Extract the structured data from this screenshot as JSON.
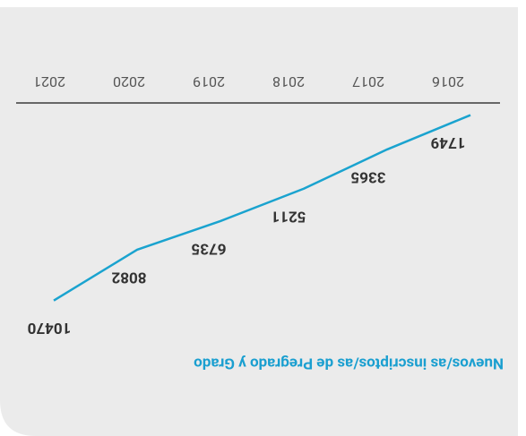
{
  "chart_data": {
    "type": "line",
    "title": "Nuevos/as inscriptos/as de Pregrado y Grado",
    "categories": [
      "2016",
      "2017",
      "2018",
      "2019",
      "2020",
      "2021"
    ],
    "series": [
      {
        "name": "Nuevos/as inscriptos/as",
        "color": "#1aa3cf",
        "values": [
          1749,
          3365,
          5211,
          6735,
          8082,
          10470
        ]
      }
    ],
    "ylim": [
      0,
      12000
    ]
  }
}
